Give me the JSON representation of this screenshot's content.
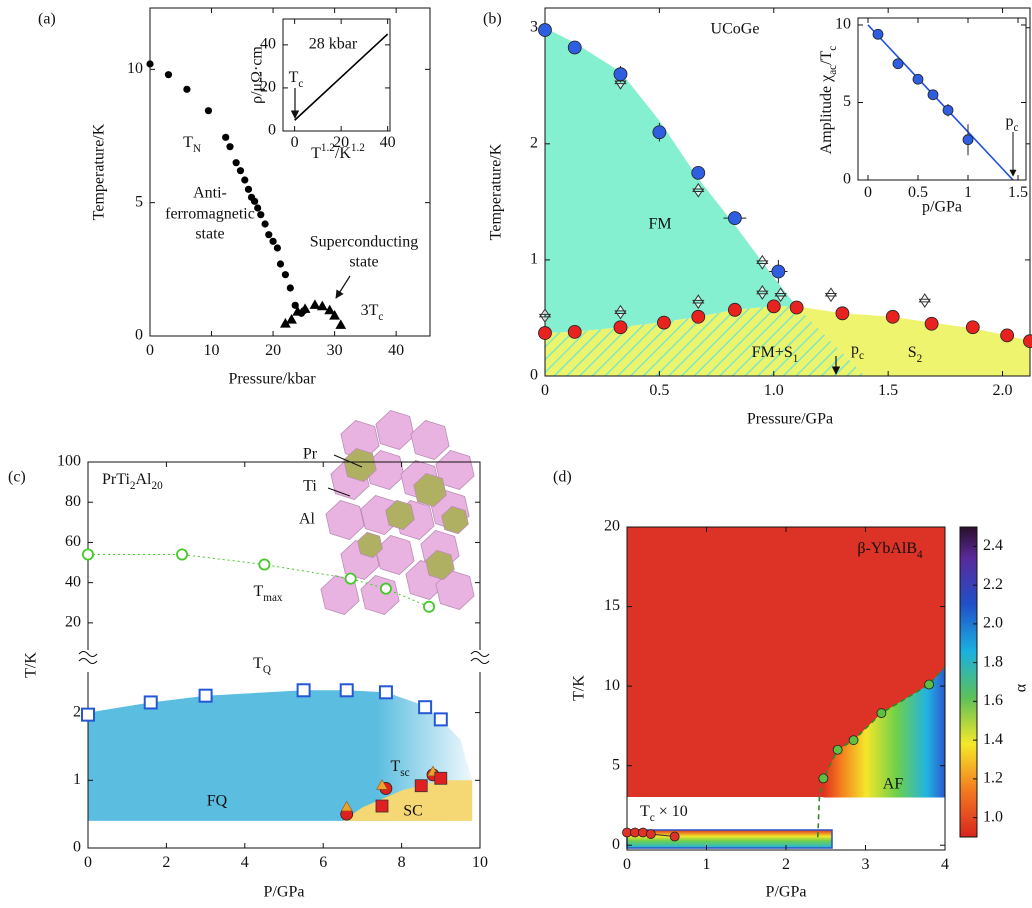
{
  "chart_data": [
    {
      "type": "scatter",
      "panel": "(a)",
      "xlabel": "Pressure/kbar",
      "ylabel": "Temperature/K",
      "xlim": [
        0,
        45.5
      ],
      "ylim": [
        0,
        12.3
      ],
      "xticks": [
        0,
        10,
        20,
        30,
        40
      ],
      "yticks": [
        0,
        5,
        10
      ],
      "series": [
        {
          "marker": "dot",
          "color": "#000000",
          "x": [
            0,
            3,
            6,
            9.5,
            12.3,
            13,
            14,
            14.7,
            15.4,
            16,
            16.5,
            17,
            17.5,
            18,
            18.7,
            19.3,
            20,
            20.7,
            21.2,
            22,
            22.8,
            23.6,
            24.6,
            25
          ],
          "values": [
            10.2,
            9.8,
            9.25,
            8.45,
            7.45,
            7.1,
            6.5,
            6.2,
            5.85,
            5.5,
            5.2,
            5.05,
            4.8,
            4.55,
            4.2,
            3.8,
            3.55,
            3.3,
            2.7,
            2.3,
            1.8,
            1.15,
            0.85,
            0.95
          ]
        },
        {
          "marker": "triangle",
          "color": "#000000",
          "x": [
            22,
            23,
            24,
            25.2,
            26.8,
            28,
            29.2,
            30,
            31
          ],
          "values": [
            0.45,
            0.6,
            0.9,
            1.0,
            1.15,
            1.1,
            0.95,
            0.75,
            0.4
          ]
        }
      ],
      "annotations": [
        [
          "T",
          {
            "sub": "N"
          }
        ],
        "Anti-",
        "ferromagnetic",
        "state",
        "Superconducting",
        "state",
        [
          "3T",
          {
            "sub": "c"
          }
        ]
      ],
      "inset": {
        "type": "line",
        "annotations": [
          "28 kbar",
          [
            "T",
            {
              "sub": "c"
            }
          ]
        ],
        "xlabel": [
          "T",
          {
            "sup": "1.2"
          },
          "/K",
          {
            "sup": "1.2"
          }
        ],
        "ylabel": "ρ/μΩ·cm",
        "xlim": [
          -5,
          41
        ],
        "ylim": [
          0,
          52
        ],
        "xticks": [
          0,
          20,
          40
        ],
        "yticks": [
          0,
          20,
          40
        ],
        "series": [
          {
            "marker": "line",
            "color": "#000000",
            "x": [
              0,
              40
            ],
            "values": [
              5,
              45
            ]
          }
        ]
      }
    },
    {
      "type": "scatter",
      "panel": "(b)",
      "xlabel": "Pressure/GPa",
      "ylabel": "Temperature/K",
      "xlim": [
        0,
        2.12
      ],
      "ylim": [
        0,
        3.17
      ],
      "xticks": [
        0,
        0.5,
        {
          "value": 1,
          "label": "1.0"
        },
        1.5,
        {
          "value": 2,
          "label": "2.0"
        }
      ],
      "yticks": [
        0,
        1,
        2,
        3
      ],
      "regions": [
        {
          "label": "FM",
          "color": "#84f0cf",
          "x": [
            0,
            0.13,
            0.33,
            0.5,
            0.67,
            0.83,
            1.0,
            1.1,
            1.0,
            0.83,
            0.67,
            0.5,
            0.33,
            0.13,
            0
          ],
          "y": [
            3.0,
            2.87,
            2.62,
            2.2,
            1.7,
            1.3,
            0.85,
            0.6,
            0.6,
            0.57,
            0.51,
            0.46,
            0.42,
            0.38,
            0.37
          ]
        },
        {
          "label": [
            "FM+S",
            {
              "sub": "1"
            }
          ],
          "color": "#eaf56d",
          "hatch": true,
          "x": [
            0,
            0.13,
            0.33,
            0.5,
            0.67,
            0.83,
            1.0,
            1.1,
            1.4,
            0
          ],
          "y": [
            0.37,
            0.38,
            0.42,
            0.46,
            0.51,
            0.57,
            0.6,
            0.6,
            0,
            0
          ]
        },
        {
          "label": [
            "S",
            {
              "sub": "2"
            }
          ],
          "color": "#eef46e",
          "x": [
            1.1,
            1.3,
            1.52,
            1.69,
            1.87,
            2.02,
            2.12,
            2.12,
            1.4
          ],
          "y": [
            0.6,
            0.54,
            0.51,
            0.46,
            0.41,
            0.35,
            0.3,
            0,
            0
          ]
        }
      ],
      "series": [
        {
          "marker": "open-triangle-pair",
          "color": "#333333",
          "x": [
            0,
            0.33,
            0.33,
            0.67,
            0.67,
            0.95,
            0.95,
            1.03,
            1.25,
            1.66
          ],
          "values": [
            0.52,
            2.53,
            0.55,
            0.64,
            1.6,
            0.98,
            0.72,
            0.7,
            0.7,
            0.65
          ]
        },
        {
          "marker": "circle",
          "color": "#e8231f",
          "x": [
            0,
            0.13,
            0.33,
            0.52,
            0.67,
            0.83,
            1.0,
            1.1,
            1.3,
            1.52,
            1.69,
            1.87,
            2.02,
            2.12
          ],
          "values": [
            0.37,
            0.38,
            0.42,
            0.46,
            0.51,
            0.57,
            0.6,
            0.59,
            0.54,
            0.51,
            0.45,
            0.42,
            0.35,
            0.3
          ]
        },
        {
          "marker": "circle",
          "color": "#2f5fe0",
          "x": [
            0,
            0.13,
            0.33,
            0.5,
            0.67,
            0.83,
            1.02
          ],
          "values": [
            2.98,
            2.83,
            2.6,
            2.1,
            1.75,
            1.36,
            0.9
          ],
          "xerr": [
            0.02,
            0.02,
            0.02,
            0.03,
            0.02,
            0.05,
            0.04
          ],
          "yerr": [
            0.03,
            0.04,
            0.07,
            0.08,
            0.04,
            0.06,
            0.1
          ]
        }
      ],
      "annotations": [
        "UCoGe",
        [
          "p",
          {
            "sub": "c"
          }
        ]
      ],
      "inset": {
        "type": "scatter",
        "annotations": [
          [
            "p",
            {
              "sub": "c"
            }
          ]
        ],
        "xlabel": "p/GPa",
        "ylabel": [
          "Amplitude χ",
          {
            "sub": "ac"
          },
          "/T",
          {
            "sub": "c"
          }
        ],
        "xlim": [
          -0.1,
          1.58
        ],
        "ylim": [
          0,
          10.45
        ],
        "xticks": [
          0,
          0.5,
          1,
          1.5
        ],
        "yticks": [
          0,
          5,
          10
        ],
        "series": [
          {
            "marker": "line",
            "color": "#1f4fe0",
            "x": [
              0,
              1.45
            ],
            "values": [
              10,
              0
            ]
          },
          {
            "marker": "circle",
            "color": "#2f5fe0",
            "x": [
              0.1,
              0.3,
              0.5,
              0.65,
              0.8,
              1.0
            ],
            "values": [
              9.4,
              7.5,
              6.5,
              5.5,
              4.5,
              2.6
            ],
            "yerr": [
              0.3,
              0.3,
              0.3,
              0.3,
              0.4,
              1.0
            ]
          }
        ]
      }
    },
    {
      "type": "scatter",
      "panel": "(c)",
      "title": [
        "PrTi",
        {
          "sub": "2"
        },
        "Al",
        {
          "sub": "20"
        }
      ],
      "xlabel": "P/GPa",
      "ylabel": "T/K",
      "xlim": [
        0,
        10
      ],
      "ylim": [
        0,
        2.6
      ],
      "y2lim": [
        6.5,
        100
      ],
      "xticks": [
        0,
        2,
        4,
        6,
        8,
        10
      ],
      "yticks": [
        0,
        1,
        2
      ],
      "y2ticks": [
        20,
        40,
        60,
        80,
        100
      ],
      "regions": [
        {
          "label": "FQ",
          "color": "#5bbde0",
          "x": [
            0,
            1.6,
            3,
            5.5,
            6.6,
            7.6,
            8.6,
            9.0,
            9.5,
            9.8,
            9.8,
            0
          ],
          "y": [
            2.0,
            2.15,
            2.25,
            2.33,
            2.33,
            2.3,
            2.1,
            1.9,
            1.6,
            1.0,
            0.4,
            0.4
          ]
        },
        {
          "label": "SC",
          "color": "#f5d874",
          "x": [
            6.5,
            7.0,
            8.0,
            9.0,
            9.8,
            9.8,
            6.5
          ],
          "y": [
            0.4,
            0.6,
            0.85,
            1.0,
            1.0,
            0.4,
            0.4
          ]
        }
      ],
      "series": [
        {
          "marker": "open-circle",
          "color": "#46c82a",
          "axis": "y2",
          "line_style": "dotted",
          "x": [
            0,
            2.4,
            4.5,
            6.7,
            7.6,
            8.7
          ],
          "values": [
            54,
            54,
            49,
            42,
            37,
            28
          ]
        },
        {
          "marker": "open-square",
          "color": "#2457d6",
          "x": [
            0,
            1.6,
            3,
            5.5,
            6.6,
            7.6,
            8.6,
            9.0
          ],
          "values": [
            1.97,
            2.15,
            2.25,
            2.33,
            2.33,
            2.3,
            2.08,
            1.9
          ]
        },
        {
          "marker": "circle",
          "color": "#e02020",
          "x": [
            6.6,
            7.6,
            8.8
          ],
          "values": [
            0.5,
            0.88,
            1.08
          ]
        },
        {
          "marker": "triangle",
          "color": "#f0a030",
          "x": [
            6.6,
            7.5,
            8.8
          ],
          "values": [
            0.6,
            0.92,
            1.12
          ]
        },
        {
          "marker": "square",
          "color": "#e02020",
          "x": [
            7.5,
            8.5,
            9.0
          ],
          "values": [
            0.62,
            0.92,
            1.03
          ]
        }
      ],
      "annotations": [
        [
          "T",
          {
            "sub": "max"
          }
        ],
        [
          "T",
          {
            "sub": "Q"
          }
        ],
        [
          "T",
          {
            "sub": "sc"
          }
        ],
        "Pr",
        "Ti",
        "Al"
      ]
    },
    {
      "type": "heatmap",
      "panel": "(d)",
      "title": [
        "β-YbAlB",
        {
          "sub": "4"
        }
      ],
      "xlabel": "P/GPa",
      "ylabel": "T/K",
      "xlim": [
        0,
        4
      ],
      "ylim": [
        -0.3,
        20
      ],
      "xticks": [
        0,
        1,
        2,
        3,
        4
      ],
      "yticks": [
        0,
        5,
        10,
        15,
        20
      ],
      "clim": [
        0.9,
        2.5
      ],
      "clabel": "α",
      "cticks": [
        {
          "value": 1,
          "label": "1.0"
        },
        1.2,
        1.4,
        1.6,
        1.8,
        {
          "value": 2,
          "label": "2.0"
        },
        2.2,
        2.4
      ],
      "regions": [
        {
          "label": "AF",
          "color": "#7fd04a",
          "x": [
            2.47,
            2.65,
            2.85,
            3.2,
            3.8,
            4,
            4,
            2.47
          ],
          "y": [
            4.2,
            6.0,
            6.6,
            8.3,
            10.1,
            11.2,
            3,
            3
          ]
        }
      ],
      "series": [
        {
          "marker": "line",
          "color": "#2a8a2a",
          "line_style": "dashed",
          "x": [
            2.4,
            2.42,
            2.47,
            2.65,
            2.85,
            3.2,
            3.8,
            4
          ],
          "values": [
            0.5,
            3,
            4.2,
            6.0,
            6.6,
            8.3,
            10.1,
            11.2
          ]
        },
        {
          "marker": "circle",
          "color": "#5cc040",
          "x": [
            2.47,
            2.65,
            2.85,
            3.2,
            3.8
          ],
          "values": [
            4.2,
            6.0,
            6.6,
            8.3,
            10.1
          ]
        },
        {
          "marker": "circle",
          "color": "#e03028",
          "line_style": "solid",
          "x": [
            0,
            0.1,
            0.2,
            0.3,
            0.6
          ],
          "values": [
            0.8,
            0.8,
            0.8,
            0.7,
            0.55
          ]
        }
      ],
      "annotations": [
        [
          "T",
          {
            "sub": "c"
          },
          " × 10"
        ]
      ]
    }
  ]
}
